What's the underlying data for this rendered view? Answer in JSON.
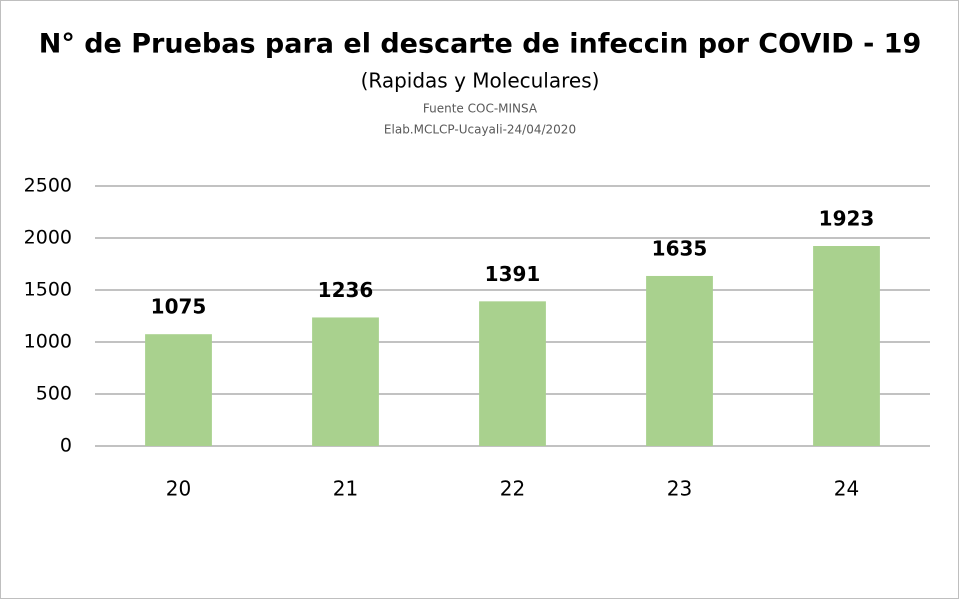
{
  "chart_data": {
    "type": "bar",
    "title": "N° de Pruebas  para el descarte de infeccin por COVID  - 19",
    "subtitle": "(Rapidas y Moleculares)",
    "annotations": [
      "Fuente COC-MINSA",
      "Elab.MCLCP-Ucayali-24/04/2020"
    ],
    "categories": [
      "20",
      "21",
      "22",
      "23",
      "24"
    ],
    "values": [
      1075,
      1236,
      1391,
      1635,
      1923
    ],
    "color": "#a9d18e",
    "ylim": [
      0,
      2500
    ],
    "yticks": [
      0,
      500,
      1000,
      1500,
      2000,
      2500
    ],
    "grid": true
  }
}
